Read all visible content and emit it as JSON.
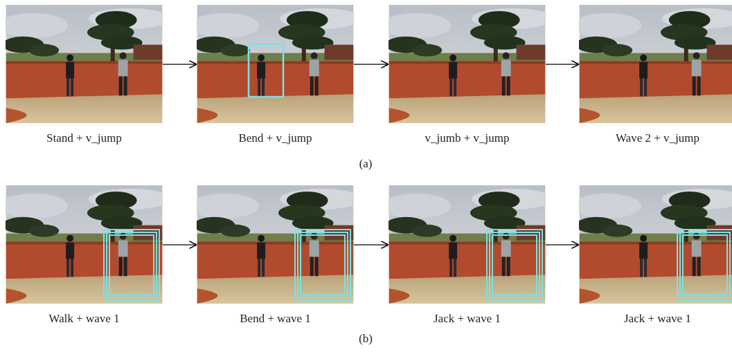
{
  "rows": [
    {
      "label": "(a)",
      "captions": [
        "Stand + v_jump",
        "Bend + v_jump",
        "v_jumb + v_jump",
        "Wave 2 + v_jump"
      ]
    },
    {
      "label": "(b)",
      "captions": [
        "Walk + wave 1",
        "Bend + wave 1",
        "Jack + wave 1",
        "Jack + wave 1"
      ]
    }
  ]
}
